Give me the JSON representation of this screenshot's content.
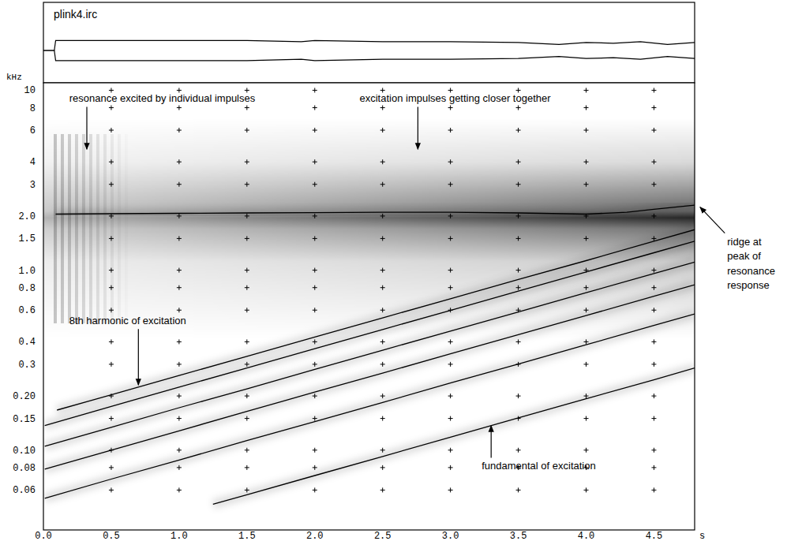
{
  "chart_data": {
    "type": "line",
    "title": "plink4.irc",
    "x_label": "s",
    "y_label": "kHz",
    "log": "y",
    "grid": true,
    "xlim": [
      0,
      4.8
    ],
    "ylim": [
      0.036,
      11
    ],
    "xticks": [
      {
        "value": 0,
        "label": "0.0"
      },
      0.5,
      {
        "value": 1,
        "label": "1.0"
      },
      1.5,
      {
        "value": 2,
        "label": "2.0"
      },
      2.5,
      {
        "value": 3,
        "label": "3.0"
      },
      3.5,
      {
        "value": 4,
        "label": "4.0"
      },
      4.5
    ],
    "yticks": [
      0.06,
      0.08,
      {
        "value": 0.1,
        "label": "0.10"
      },
      0.15,
      {
        "value": 0.2,
        "label": "0.20"
      },
      0.3,
      0.4,
      0.6,
      0.8,
      {
        "value": 1,
        "label": "1.0"
      },
      1.5,
      {
        "value": 2,
        "label": "2.0"
      },
      3,
      4,
      6,
      8,
      10
    ],
    "series": [
      {
        "color": "#000000",
        "x": [
          1.25,
          1.5,
          2.0,
          2.5,
          3.0,
          3.5,
          4.0,
          4.5,
          4.8
        ],
        "values": [
          0.05,
          0.0565,
          0.0722,
          0.0922,
          0.118,
          0.151,
          0.193,
          0.246,
          0.286
        ]
      },
      {
        "color": "#000000",
        "x": [
          0.01,
          0.5,
          1.0,
          1.5,
          2.0,
          2.5,
          3.0,
          3.5,
          4.0,
          4.5,
          4.8
        ],
        "values": [
          0.054,
          0.069,
          0.088,
          0.113,
          0.144,
          0.184,
          0.236,
          0.301,
          0.385,
          0.493,
          0.571
        ]
      },
      {
        "color": "#000000",
        "x": [
          0.01,
          0.5,
          1.0,
          1.5,
          2.0,
          2.5,
          3.0,
          3.5,
          4.0,
          4.5,
          4.8
        ],
        "values": [
          0.0785,
          0.1,
          0.128,
          0.164,
          0.21,
          0.268,
          0.343,
          0.438,
          0.56,
          0.716,
          0.83
        ]
      },
      {
        "color": "#000000",
        "x": [
          0.01,
          0.5,
          1.0,
          1.5,
          2.0,
          2.5,
          3.0,
          3.5,
          4.0,
          4.5,
          4.8
        ],
        "values": [
          0.105,
          0.134,
          0.172,
          0.219,
          0.281,
          0.359,
          0.459,
          0.586,
          0.749,
          0.958,
          1.11
        ]
      },
      {
        "color": "#000000",
        "x": [
          0.01,
          0.5,
          1.0,
          1.5,
          2.0,
          2.5,
          3.0,
          3.5,
          4.0,
          4.5,
          4.8
        ],
        "values": [
          0.137,
          0.175,
          0.224,
          0.286,
          0.366,
          0.468,
          0.598,
          0.765,
          0.978,
          1.25,
          1.45
        ]
      },
      {
        "color": "#000000",
        "x": [
          0.1,
          0.5,
          1.0,
          1.5,
          2.0,
          2.5,
          3.0,
          3.5,
          4.0,
          4.5,
          4.8
        ],
        "values": [
          0.167,
          0.203,
          0.26,
          0.332,
          0.425,
          0.543,
          0.694,
          0.888,
          1.13,
          1.45,
          1.68
        ]
      },
      {
        "color": "#000000",
        "x": [
          0.09,
          0.5,
          1.0,
          1.5,
          2.0,
          2.5,
          3.0,
          3.5,
          4.0,
          4.3,
          4.5,
          4.8
        ],
        "values": [
          2.05,
          2.06,
          2.07,
          2.08,
          2.09,
          2.1,
          2.1,
          2.08,
          2.05,
          2.1,
          2.18,
          2.3
        ]
      }
    ],
    "waveform": {
      "x": [
        0,
        0.08,
        0.09,
        0.2,
        0.5,
        1.0,
        1.5,
        1.9,
        2.0,
        2.5,
        3.0,
        3.5,
        3.8,
        4.0,
        4.2,
        4.4,
        4.6,
        4.8
      ],
      "envelope": [
        0,
        0,
        0.25,
        0.25,
        0.25,
        0.25,
        0.25,
        0.22,
        0.25,
        0.22,
        0.22,
        0.2,
        0.15,
        0.2,
        0.18,
        0.22,
        0.15,
        0.2
      ]
    },
    "annotations": [
      {
        "text": "resonance excited by individual impulses",
        "xytext": [
          0.19,
          8.6
        ],
        "xy": [
          0.32,
          4.7
        ]
      },
      {
        "text": "excitation impulses getting closer together",
        "xytext": [
          2.33,
          8.6
        ],
        "xy": [
          2.76,
          4.7
        ]
      },
      {
        "text": "8th harmonic of excitation",
        "xytext": [
          0.19,
          0.5
        ],
        "xy": [
          0.7,
          0.23
        ]
      },
      {
        "text": "fundamental of excitation",
        "xytext": [
          3.23,
          0.078
        ],
        "xy": [
          3.3,
          0.137
        ]
      },
      {
        "text": [
          "ridge at",
          "peak of",
          "resonance",
          "response"
        ],
        "xytext": [
          5.04,
          1.38
        ],
        "xy": [
          4.84,
          2.24
        ]
      }
    ]
  }
}
